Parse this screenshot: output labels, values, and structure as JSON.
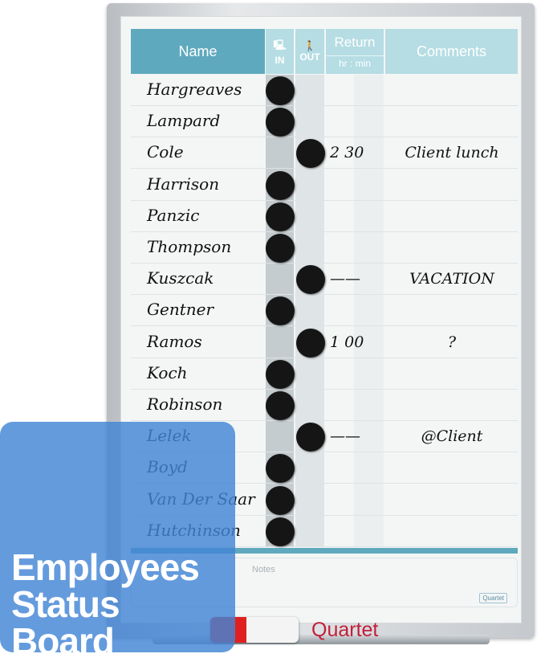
{
  "header": {
    "name": "Name",
    "in": "IN",
    "out": "OUT",
    "return": "Return",
    "return_sub": "hr : min",
    "comments": "Comments"
  },
  "icons": {
    "in": "person-at-desk-icon",
    "out": "person-walking-icon"
  },
  "rows": [
    {
      "name": "Hargreaves",
      "status": "in",
      "return": "",
      "comment": ""
    },
    {
      "name": "Lampard",
      "status": "in",
      "return": "",
      "comment": ""
    },
    {
      "name": "Cole",
      "status": "out",
      "return": "2 30",
      "comment": "Client lunch"
    },
    {
      "name": "Harrison",
      "status": "in",
      "return": "",
      "comment": ""
    },
    {
      "name": "Panzic",
      "status": "in",
      "return": "",
      "comment": ""
    },
    {
      "name": "Thompson",
      "status": "in",
      "return": "",
      "comment": ""
    },
    {
      "name": "Kuszcak",
      "status": "out",
      "return": "——",
      "comment": "VACATION"
    },
    {
      "name": "Gentner",
      "status": "in",
      "return": "",
      "comment": ""
    },
    {
      "name": "Ramos",
      "status": "out",
      "return": "1 00",
      "comment": "?"
    },
    {
      "name": "Koch",
      "status": "in",
      "return": "",
      "comment": ""
    },
    {
      "name": "Robinson",
      "status": "in",
      "return": "",
      "comment": ""
    },
    {
      "name": "Lelek",
      "status": "out",
      "return": "——",
      "comment": "@Client"
    },
    {
      "name": "Boyd",
      "status": "in",
      "return": "",
      "comment": ""
    },
    {
      "name": "Van Der Saar",
      "status": "in",
      "return": "",
      "comment": ""
    },
    {
      "name": "Hutchinson",
      "status": "in",
      "return": "",
      "comment": ""
    }
  ],
  "notes_label": "Notes",
  "brand": "Quartet",
  "marker_brand": "Quartet",
  "overlay": {
    "line1": "Employees",
    "line2": "Status",
    "line3": "Board"
  },
  "colors": {
    "header_dark": "#5fa9be",
    "header_light": "#b5dde3",
    "magnet": "#151515",
    "overlay": "#4285d6"
  }
}
